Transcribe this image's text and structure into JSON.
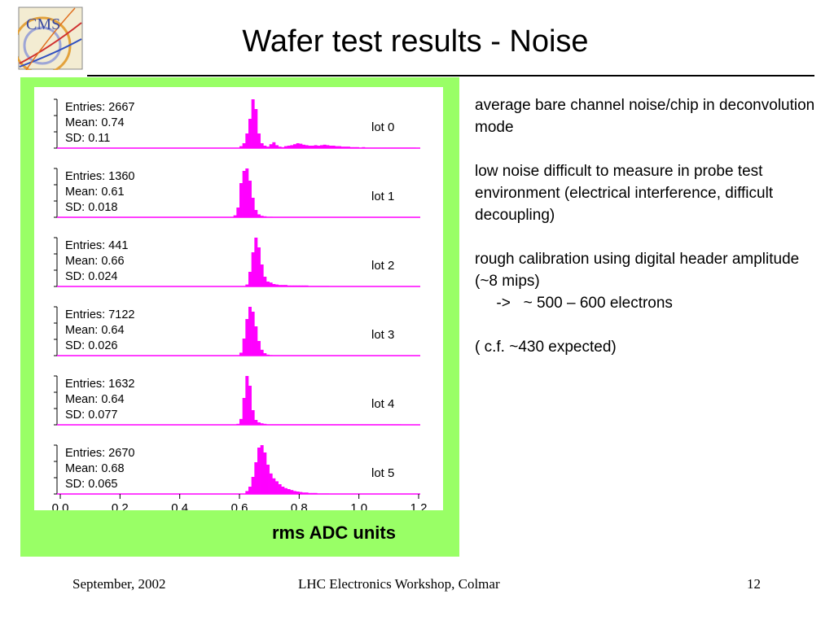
{
  "slide": {
    "title": "Wafer test results - Noise",
    "logo_text": "CMS",
    "x_unit_label": "rms ADC units"
  },
  "notes": {
    "p1": "average bare channel noise/chip  in deconvolution mode",
    "p2": "low noise difficult to measure in probe test environment (electrical interference, difficult decoupling)",
    "p3_line1": "rough calibration using digital header amplitude (~8 mips)",
    "p3_line2": "     ->   ~ 500 – 600 electrons",
    "p4": "( c.f. ~430 expected)"
  },
  "footer": {
    "left": "September, 2002",
    "center": "LHC Electronics Workshop, Colmar",
    "right": "12"
  },
  "colors": {
    "histogram": "#ff00ff",
    "panel": "#99ff66",
    "axis": "#000000"
  },
  "chart_data": {
    "type": "histogram",
    "xlim": [
      0.0,
      1.2
    ],
    "xticks": [
      "0.0",
      "0.2",
      "0.4",
      "0.6",
      "0.8",
      "1.0",
      "1.2"
    ],
    "bin_width": 0.01,
    "panels": [
      {
        "label": "lot 0",
        "stats": [
          "Entries: 2667",
          "Mean: 0.74",
          "SD: 0.11"
        ],
        "bin_start": 0.6,
        "counts": [
          4,
          10,
          30,
          60,
          100,
          80,
          30,
          10,
          5,
          3,
          8,
          12,
          6,
          3,
          2,
          4,
          5,
          6,
          8,
          10,
          9,
          7,
          6,
          5,
          5,
          6,
          5,
          6,
          7,
          6,
          5,
          5,
          4,
          4,
          3,
          3,
          3,
          2,
          2,
          2,
          1,
          2,
          1,
          1,
          1,
          1,
          1,
          1,
          1,
          1,
          1,
          1,
          1,
          1,
          1,
          1,
          1,
          1,
          1
        ]
      },
      {
        "label": "lot 1",
        "stats": [
          "Entries: 1360",
          "Mean: 0.61",
          "SD: 0.018"
        ],
        "bin_start": 0.58,
        "counts": [
          4,
          20,
          70,
          95,
          100,
          75,
          40,
          15,
          6,
          3,
          2,
          1,
          1
        ]
      },
      {
        "label": "lot 2",
        "stats": [
          "Entries: 441",
          "Mean: 0.66",
          "SD: 0.024"
        ],
        "bin_start": 0.62,
        "counts": [
          4,
          30,
          70,
          100,
          80,
          45,
          20,
          10,
          8,
          5,
          4,
          3,
          3,
          3,
          2,
          2,
          2,
          2,
          2,
          2,
          2,
          1,
          1,
          1,
          1,
          1,
          1,
          1
        ]
      },
      {
        "label": "lot 3",
        "stats": [
          "Entries: 7122",
          "Mean: 0.64",
          "SD: 0.026"
        ],
        "bin_start": 0.6,
        "counts": [
          6,
          35,
          75,
          100,
          90,
          60,
          30,
          12,
          5,
          2,
          1
        ]
      },
      {
        "label": "lot 4",
        "stats": [
          "Entries: 1632",
          "Mean: 0.64",
          "SD: 0.077"
        ],
        "bin_start": 0.59,
        "counts": [
          2,
          12,
          55,
          100,
          80,
          30,
          10,
          5,
          3,
          2,
          1,
          1,
          1,
          1,
          1,
          1,
          1,
          1,
          1,
          1,
          1,
          1,
          1,
          1,
          1,
          1,
          1,
          1,
          1,
          1,
          1,
          1,
          1,
          1,
          1,
          1,
          1,
          1,
          1,
          1,
          1,
          1,
          1,
          1,
          1,
          1,
          1,
          1,
          1,
          1,
          1,
          1,
          1,
          1,
          1
        ]
      },
      {
        "label": "lot 5",
        "stats": [
          "Entries: 2670",
          "Mean: 0.68",
          "SD: 0.065"
        ],
        "bin_start": 0.62,
        "counts": [
          6,
          15,
          35,
          65,
          95,
          100,
          85,
          60,
          42,
          32,
          26,
          20,
          15,
          12,
          10,
          8,
          6,
          5,
          4,
          3,
          3,
          2,
          2,
          2,
          1,
          1,
          1,
          1
        ]
      }
    ]
  }
}
